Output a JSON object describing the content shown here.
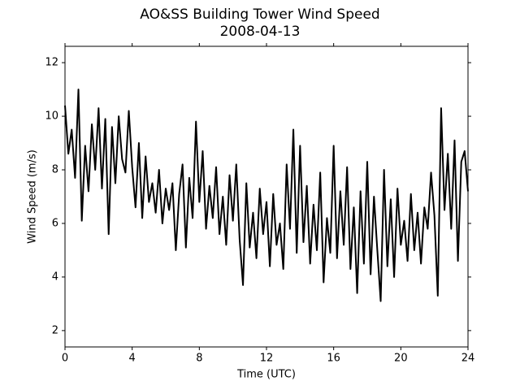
{
  "chart_data": {
    "type": "line",
    "title": "AO&SS Building Tower Wind Speed",
    "subtitle": "2008-04-13",
    "x_label": "Time (UTC)",
    "y_label": "Wind Speed (m/s)",
    "color": "#000000",
    "xlim": [
      0,
      24
    ],
    "xticks": [
      0,
      4,
      8,
      12,
      16,
      20,
      24
    ],
    "ylim": [
      1.39,
      12.61
    ],
    "yticks": [
      2,
      4,
      6,
      8,
      10,
      12
    ],
    "x": [
      0,
      0.2,
      0.4,
      0.6,
      0.8,
      1,
      1.2,
      1.4,
      1.6,
      1.8,
      2,
      2.2,
      2.4,
      2.6,
      2.8,
      3,
      3.2,
      3.4,
      3.6,
      3.8,
      4,
      4.2,
      4.4,
      4.6,
      4.8,
      5,
      5.2,
      5.4,
      5.6,
      5.8,
      6,
      6.2,
      6.4,
      6.6,
      6.8,
      7,
      7.2,
      7.4,
      7.6,
      7.8,
      8,
      8.2,
      8.4,
      8.6,
      8.8,
      9,
      9.2,
      9.4,
      9.6,
      9.8,
      10,
      10.2,
      10.4,
      10.6,
      10.8,
      11,
      11.2,
      11.4,
      11.6,
      11.8,
      12,
      12.2,
      12.4,
      12.6,
      12.8,
      13,
      13.2,
      13.4,
      13.6,
      13.8,
      14,
      14.2,
      14.4,
      14.6,
      14.8,
      15,
      15.2,
      15.4,
      15.6,
      15.8,
      16,
      16.2,
      16.4,
      16.6,
      16.8,
      17,
      17.2,
      17.4,
      17.6,
      17.8,
      18,
      18.2,
      18.4,
      18.6,
      18.8,
      19,
      19.2,
      19.4,
      19.6,
      19.8,
      20,
      20.2,
      20.4,
      20.6,
      20.8,
      21,
      21.2,
      21.4,
      21.6,
      21.8,
      22,
      22.2,
      22.4,
      22.6,
      22.8,
      23,
      23.2,
      23.4,
      23.6,
      23.8,
      24
    ],
    "values": [
      10.4,
      8.6,
      9.5,
      7.7,
      11.0,
      6.1,
      8.9,
      7.2,
      9.7,
      8.0,
      10.3,
      7.3,
      9.9,
      5.6,
      9.6,
      7.5,
      10.0,
      8.4,
      7.9,
      10.2,
      8.1,
      6.6,
      9.0,
      6.2,
      8.5,
      6.8,
      7.5,
      6.4,
      8.0,
      6.0,
      7.3,
      6.5,
      7.5,
      5.0,
      7.1,
      8.2,
      5.1,
      7.7,
      6.2,
      9.8,
      6.8,
      8.7,
      5.8,
      7.4,
      6.2,
      8.1,
      5.6,
      7.0,
      5.2,
      7.8,
      6.1,
      8.2,
      5.4,
      3.7,
      7.5,
      5.1,
      6.4,
      4.7,
      7.3,
      5.6,
      6.8,
      4.4,
      7.1,
      5.2,
      6.0,
      4.3,
      8.2,
      5.8,
      9.5,
      4.9,
      8.9,
      5.3,
      7.4,
      4.5,
      6.7,
      5.0,
      7.9,
      3.8,
      6.2,
      4.9,
      8.9,
      4.7,
      7.2,
      5.2,
      8.1,
      4.3,
      6.6,
      3.4,
      7.2,
      4.5,
      8.3,
      4.1,
      7.0,
      5.0,
      3.1,
      8.0,
      4.4,
      6.9,
      4.0,
      7.3,
      5.2,
      6.1,
      4.6,
      7.1,
      5.0,
      6.4,
      4.5,
      6.6,
      5.8,
      7.9,
      6.3,
      3.3,
      10.3,
      6.5,
      8.6,
      5.8,
      9.1,
      4.6,
      8.3,
      8.7,
      7.2
    ]
  }
}
